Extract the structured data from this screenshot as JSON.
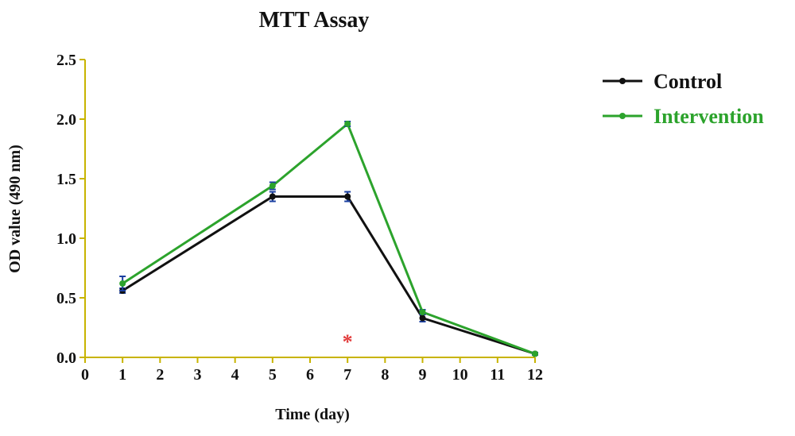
{
  "chart_data": {
    "type": "line",
    "title": "MTT Assay",
    "xlabel": "Time (day)",
    "ylabel": "OD value (490 nm)",
    "xlim": [
      0,
      12
    ],
    "ylim": [
      0,
      2.5
    ],
    "x_ticks": [
      "0",
      "1",
      "2",
      "3",
      "4",
      "5",
      "6",
      "7",
      "8",
      "9",
      "10",
      "11",
      "12"
    ],
    "y_ticks": [
      "0.0",
      "0.5",
      "1.0",
      "1.5",
      "2.0",
      "2.5"
    ],
    "grid": false,
    "legend_position": "right",
    "series": [
      {
        "name": "Control",
        "color": "#111111",
        "x": [
          1,
          5,
          7,
          9,
          12
        ],
        "y": [
          0.56,
          1.35,
          1.35,
          0.33,
          0.03
        ],
        "error": [
          0.02,
          0.04,
          0.04,
          0.03,
          0.01
        ]
      },
      {
        "name": "Intervention",
        "color": "#2ca32c",
        "x": [
          1,
          5,
          7,
          9,
          12
        ],
        "y": [
          0.62,
          1.44,
          1.96,
          0.38,
          0.03
        ],
        "error": [
          0.06,
          0.03,
          0.02,
          0.02,
          0.01
        ]
      }
    ],
    "annotations": [
      {
        "text": "*",
        "x": 7,
        "y": 0.14,
        "color": "#e23b3b"
      }
    ],
    "legend_text_colors": [
      "#111111",
      "#2ca32c"
    ],
    "error_bar_color": "#1a3fa0",
    "axis_color": "#c8b400"
  }
}
